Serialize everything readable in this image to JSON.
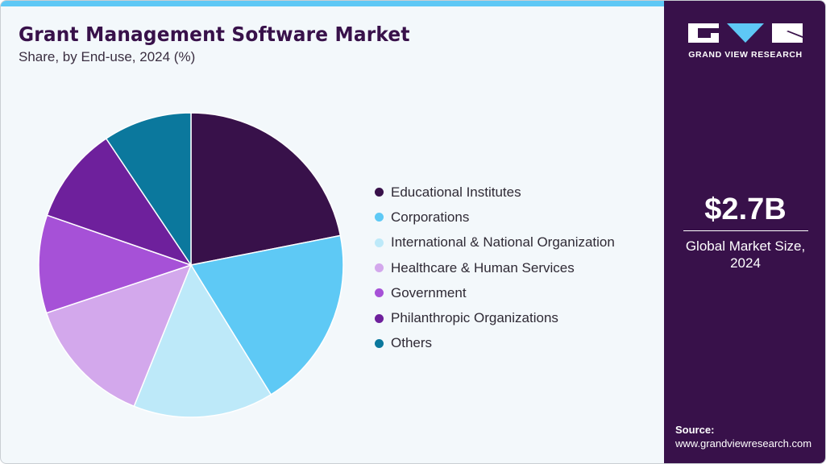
{
  "header": {
    "title": "Grant Management Software Market",
    "subtitle": "Share, by End-use, 2024 (%)"
  },
  "colors": {
    "accent_bar": "#5ec8f5",
    "sidebar_bg": "#38114a",
    "background": "#f3f8fb"
  },
  "sidebar": {
    "logo_text": "GRAND VIEW RESEARCH",
    "market_size": "$2.7B",
    "market_size_label_line1": "Global Market Size,",
    "market_size_label_line2": "2024",
    "source_label": "Source:",
    "source_url": "www.grandviewresearch.com"
  },
  "legend": [
    {
      "label": "Educational Institutes",
      "color": "#38114a"
    },
    {
      "label": "Corporations",
      "color": "#5ec9f5"
    },
    {
      "label": "International & National Organization",
      "color": "#bde9f9"
    },
    {
      "label": "Healthcare & Human Services",
      "color": "#d3a8ec"
    },
    {
      "label": "Government",
      "color": "#a651d7"
    },
    {
      "label": "Philanthropic Organizations",
      "color": "#6e209c"
    },
    {
      "label": "Others",
      "color": "#0b789d"
    }
  ],
  "chart_data": {
    "type": "pie",
    "title": "Grant Management Software Market",
    "subtitle": "Share, by End-use, 2024 (%)",
    "categories": [
      "Educational Institutes",
      "Corporations",
      "International & National Organization",
      "Healthcare & Human Services",
      "Government",
      "Philanthropic Organizations",
      "Others"
    ],
    "values": [
      21.9,
      19.3,
      14.9,
      13.8,
      10.4,
      10.3,
      9.4
    ],
    "colors": [
      "#38114a",
      "#5ec9f5",
      "#bde9f9",
      "#d3a8ec",
      "#a651d7",
      "#6e209c",
      "#0b789d"
    ],
    "start_angle": "12 o'clock, clockwise",
    "legend_position": "right",
    "annotations": [
      "$2.7B Global Market Size, 2024"
    ]
  }
}
